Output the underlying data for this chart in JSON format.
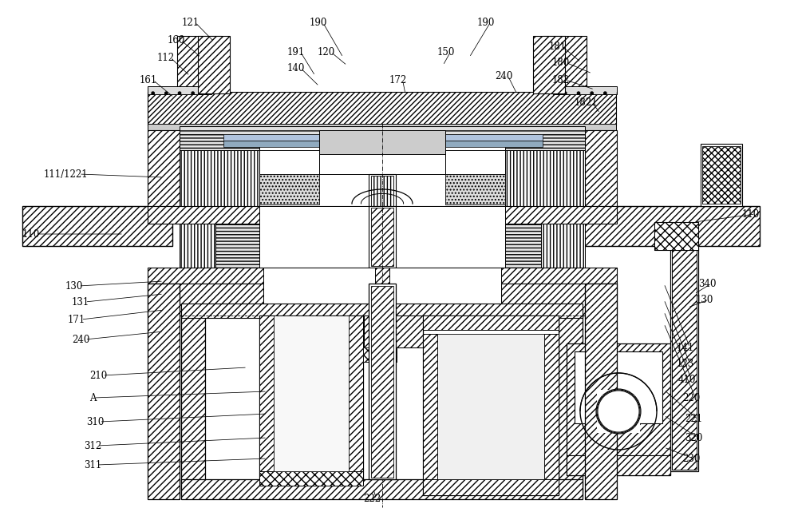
{
  "background_color": "#ffffff",
  "fig_width": 10.0,
  "fig_height": 6.41,
  "labels": [
    [
      "121",
      228,
      28,
      268,
      52
    ],
    [
      "160",
      210,
      50,
      252,
      72
    ],
    [
      "112",
      197,
      72,
      238,
      95
    ],
    [
      "161",
      175,
      100,
      218,
      122
    ],
    [
      "111/1221",
      55,
      218,
      205,
      222
    ],
    [
      "110",
      28,
      293,
      155,
      293
    ],
    [
      "130",
      82,
      358,
      205,
      352
    ],
    [
      "131",
      90,
      378,
      205,
      368
    ],
    [
      "171",
      85,
      400,
      205,
      388
    ],
    [
      "240",
      90,
      425,
      205,
      415
    ],
    [
      "210",
      112,
      470,
      310,
      460
    ],
    [
      "A",
      112,
      498,
      335,
      490
    ],
    [
      "310",
      108,
      528,
      335,
      518
    ],
    [
      "312",
      105,
      558,
      335,
      548
    ],
    [
      "311",
      105,
      582,
      335,
      574
    ],
    [
      "190",
      388,
      28,
      430,
      72
    ],
    [
      "190",
      598,
      28,
      588,
      72
    ],
    [
      "191",
      360,
      65,
      395,
      95
    ],
    [
      "140",
      360,
      85,
      400,
      108
    ],
    [
      "120",
      398,
      65,
      435,
      82
    ],
    [
      "150",
      548,
      65,
      555,
      82
    ],
    [
      "172",
      488,
      100,
      508,
      118
    ],
    [
      "240",
      620,
      95,
      648,
      118
    ],
    [
      "181",
      688,
      58,
      728,
      78
    ],
    [
      "180",
      692,
      78,
      742,
      92
    ],
    [
      "182",
      692,
      100,
      745,
      112
    ],
    [
      "1821",
      720,
      128,
      752,
      142
    ],
    [
      "110",
      930,
      268,
      870,
      278
    ],
    [
      "340",
      875,
      355,
      870,
      368
    ],
    [
      "130",
      872,
      375,
      862,
      385
    ],
    [
      "141",
      848,
      435,
      832,
      355
    ],
    [
      "123",
      848,
      455,
      832,
      375
    ],
    [
      "410",
      850,
      475,
      832,
      390
    ],
    [
      "220",
      855,
      498,
      832,
      405
    ],
    [
      "221",
      858,
      525,
      832,
      488
    ],
    [
      "320",
      858,
      548,
      832,
      520
    ],
    [
      "230",
      855,
      575,
      832,
      560
    ],
    [
      "222",
      455,
      625,
      468,
      612
    ]
  ]
}
